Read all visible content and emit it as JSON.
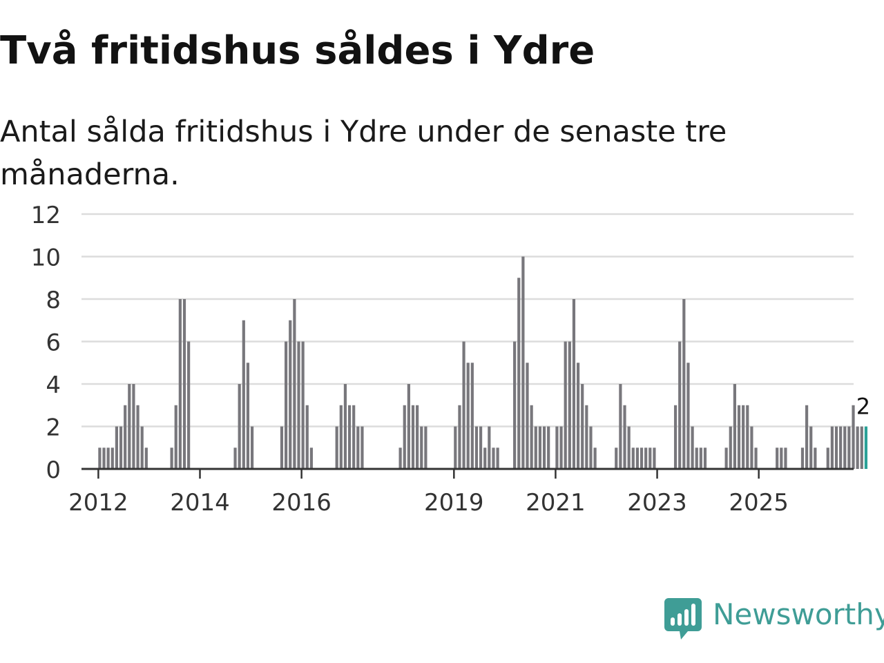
{
  "title": "Två fritidshus såldes i Ydre",
  "subtitle": "Antal sålda fritidshus i Ydre under de senaste tre månaderna.",
  "brand": {
    "name": "Newsworthy",
    "icon": "newsworthy-logo-icon",
    "color": "#3f9d96"
  },
  "chart_data": {
    "type": "bar",
    "title": "Två fritidshus såldes i Ydre",
    "subtitle": "Antal sålda fritidshus i Ydre under de senaste tre månaderna.",
    "xlabel": "",
    "ylabel": "",
    "ylim": [
      0,
      12
    ],
    "yticks": [
      0,
      2,
      4,
      6,
      8,
      10,
      12
    ],
    "xticks": [
      "2012",
      "2014",
      "2016",
      "2019",
      "2021",
      "2023",
      "2025"
    ],
    "x_start": "2011-10",
    "frequency": "monthly",
    "grid": true,
    "legend": "none",
    "bar_color": "#78777c",
    "highlight_color": "#2aa197",
    "highlight_label": "2",
    "values": [
      0,
      0,
      0,
      1,
      1,
      1,
      1,
      2,
      2,
      3,
      4,
      4,
      3,
      2,
      1,
      0,
      0,
      0,
      0,
      0,
      1,
      3,
      8,
      8,
      6,
      0,
      0,
      0,
      0,
      0,
      0,
      0,
      0,
      0,
      0,
      1,
      4,
      7,
      5,
      2,
      0,
      0,
      0,
      0,
      0,
      0,
      2,
      6,
      7,
      8,
      6,
      6,
      3,
      1,
      0,
      0,
      0,
      0,
      0,
      2,
      3,
      4,
      3,
      3,
      2,
      2,
      0,
      0,
      0,
      0,
      0,
      0,
      0,
      0,
      1,
      3,
      4,
      3,
      3,
      2,
      2,
      0,
      0,
      0,
      0,
      0,
      0,
      2,
      3,
      6,
      5,
      5,
      2,
      2,
      1,
      2,
      1,
      1,
      0,
      0,
      0,
      6,
      9,
      10,
      5,
      3,
      2,
      2,
      2,
      2,
      0,
      2,
      2,
      6,
      6,
      8,
      5,
      4,
      3,
      2,
      1,
      0,
      0,
      0,
      0,
      1,
      4,
      3,
      2,
      1,
      1,
      1,
      1,
      1,
      1,
      0,
      0,
      0,
      0,
      3,
      6,
      8,
      5,
      2,
      1,
      1,
      1,
      0,
      0,
      0,
      0,
      1,
      2,
      4,
      3,
      3,
      3,
      2,
      1,
      0,
      0,
      0,
      0,
      1,
      1,
      1,
      0,
      0,
      0,
      1,
      3,
      2,
      1,
      0,
      0,
      1,
      2,
      2,
      2,
      2,
      2,
      3,
      2,
      2,
      2
    ]
  }
}
